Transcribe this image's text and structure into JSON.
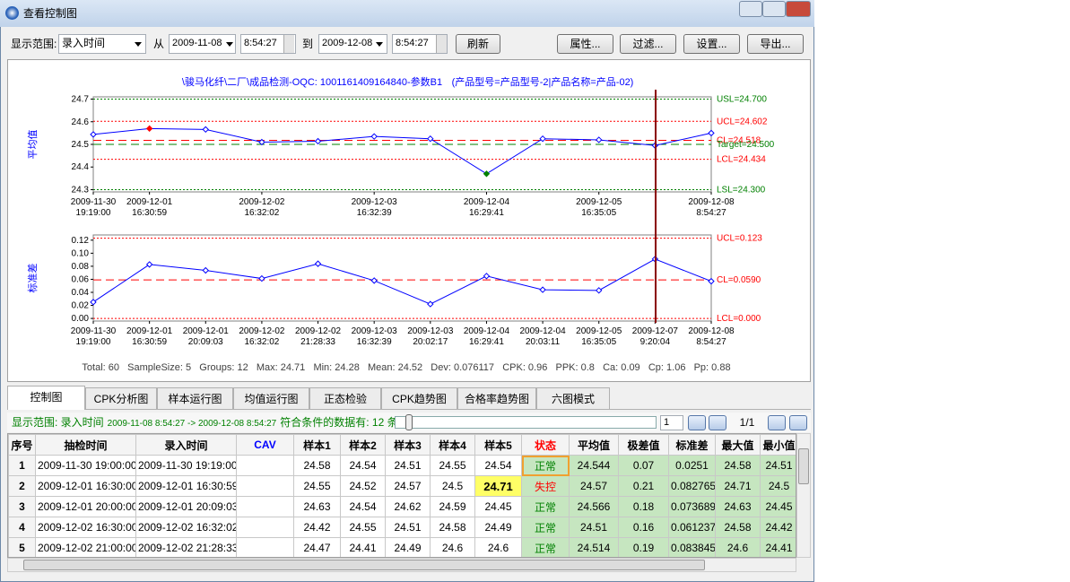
{
  "window": {
    "title": "查看控制图"
  },
  "toolbar": {
    "range_label": "显示范围:",
    "range_field": "录入时间",
    "from": "从",
    "from_date": "2009-11-08",
    "from_time": "8:54:27",
    "to": "到",
    "to_date": "2009-12-08",
    "to_time": "8:54:27",
    "refresh": "刷新",
    "buttons": [
      "属性...",
      "过滤...",
      "设置...",
      "导出..."
    ]
  },
  "chart_title": [
    "\\骏马化纤\\二厂\\成品检测-OQC: 1001161409164840-参数B1",
    "(产品型号=产品型号-2|产品名称=产品-02)"
  ],
  "charts": [
    {
      "type": "line",
      "y_label": "平均值",
      "color": "#0000ff",
      "categories": [
        "2009-11-30 19:19:00",
        "2009-12-01 16:30:59",
        null,
        "2009-12-02 16:32:02",
        null,
        "2009-12-03 16:32:39",
        null,
        "2009-12-04 16:29:41",
        null,
        "2009-12-05 16:35:05",
        null,
        "2009-12-08 8:54:27"
      ],
      "values": [
        24.544,
        24.57,
        24.566,
        24.51,
        24.514,
        24.535,
        24.525,
        24.37,
        24.525,
        24.52,
        24.495,
        24.55
      ],
      "marker_colors": [
        "#0000ff",
        "#ff0000",
        "#0000ff",
        "#0000ff",
        "#0000ff",
        "#0000ff",
        "#0000ff",
        "#008000",
        "#0000ff",
        "#0000ff",
        "#0000ff",
        "#0000ff"
      ],
      "ylim": [
        24.29,
        24.71
      ],
      "yticks": [
        24.3,
        24.4,
        24.5,
        24.6,
        24.7
      ],
      "control_lines": [
        {
          "label": "USL=24.700",
          "value": 24.7,
          "color": "#008000",
          "style": "dotted"
        },
        {
          "label": "UCL=24.602",
          "value": 24.602,
          "color": "#ff0000",
          "style": "dotted"
        },
        {
          "label": "CL=24.518",
          "value": 24.518,
          "color": "#ff0000",
          "style": "dashed"
        },
        {
          "label": "Target=24.500",
          "value": 24.5,
          "color": "#008000",
          "style": "dashed"
        },
        {
          "label": "LCL=24.434",
          "value": 24.434,
          "color": "#ff0000",
          "style": "dotted"
        },
        {
          "label": "LSL=24.300",
          "value": 24.3,
          "color": "#008000",
          "style": "dotted"
        }
      ]
    },
    {
      "type": "line",
      "y_label": "标准差",
      "color": "#0000ff",
      "categories": [
        "2009-11-30 19:19:00",
        "2009-12-01 16:30:59",
        "2009-12-01 20:09:03",
        "2009-12-02 16:32:02",
        "2009-12-02 21:28:33",
        "2009-12-03 16:32:39",
        "2009-12-03 20:02:17",
        "2009-12-04 16:29:41",
        "2009-12-04 20:03:11",
        "2009-12-05 16:35:05",
        "2009-12-07 9:20:04",
        "2009-12-08 8:54:27"
      ],
      "values": [
        0.0251,
        0.082765,
        0.073689,
        0.061237,
        0.083845,
        0.058,
        0.022,
        0.065,
        0.044,
        0.043,
        0.091,
        0.057
      ],
      "marker_colors": [
        "#0000ff",
        "#0000ff",
        "#0000ff",
        "#0000ff",
        "#0000ff",
        "#0000ff",
        "#0000ff",
        "#0000ff",
        "#0000ff",
        "#0000ff",
        "#0000ff",
        "#0000ff"
      ],
      "ylim": [
        -0.004,
        0.128
      ],
      "yticks": [
        {
          "value": 0,
          "label": "0.00"
        },
        0.02,
        0.04,
        0.06,
        0.08,
        {
          "value": 0.1,
          "label": "0.10"
        },
        0.12
      ],
      "control_lines": [
        {
          "label": "UCL=0.123",
          "value": 0.123,
          "color": "#ff0000",
          "style": "dotted"
        },
        {
          "label": "CL=0.0590",
          "value": 0.059,
          "color": "#ff0000",
          "style": "dashed"
        },
        {
          "label": "LCL=0.000",
          "value": 0,
          "color": "#ff0000",
          "style": "dotted"
        }
      ]
    }
  ],
  "stats": "Total: 60   SampleSize: 5   Groups: 12   Max: 24.71   Min: 24.28   Mean: 24.52   Dev: 0.076117   CPK: 0.96   PPK: 0.8   Ca: 0.09   Cp: 1.06   Pp: 0.88",
  "tabs": [
    "控制图",
    "CPK分析图",
    "样本运行图",
    "均值运行图",
    "正态检验",
    "CPK趋势图",
    "合格率趋势图",
    "六图模式"
  ],
  "status": {
    "range": "显示范围: 录入时间",
    "period": "2009-11-08 8:54:27 -> 2009-12-08 8:54:27",
    "count": "符合条件的数据有: 12 条",
    "page": "1",
    "pages": "1/1"
  },
  "table": {
    "columns": [
      "序号",
      "抽检时间",
      "录入时间",
      "CAV",
      "样本1",
      "样本2",
      "样本3",
      "样本4",
      "样本5",
      "状态",
      "平均值",
      "极差值",
      "标准差",
      "最大值",
      "最小值"
    ],
    "rows": [
      [
        "1",
        "2009-11-30 19:00:00",
        "2009-11-30 19:19:00",
        null,
        "24.58",
        "24.54",
        "24.51",
        "24.55",
        "24.54",
        "正常",
        "24.544",
        "0.07",
        "0.0251",
        "24.58",
        "24.51"
      ],
      [
        "2",
        "2009-12-01 16:30:00",
        "2009-12-01 16:30:59",
        null,
        "24.55",
        "24.52",
        "24.57",
        "24.5",
        "24.71",
        "失控",
        "24.57",
        "0.21",
        "0.082765",
        "24.71",
        "24.5"
      ],
      [
        "3",
        "2009-12-01 20:00:00",
        "2009-12-01 20:09:03",
        null,
        "24.63",
        "24.54",
        "24.62",
        "24.59",
        "24.45",
        "正常",
        "24.566",
        "0.18",
        "0.073689",
        "24.63",
        "24.45"
      ],
      [
        "4",
        "2009-12-02 16:30:00",
        "2009-12-02 16:32:02",
        null,
        "24.42",
        "24.55",
        "24.51",
        "24.58",
        "24.49",
        "正常",
        "24.51",
        "0.16",
        "0.061237",
        "24.58",
        "24.42"
      ],
      [
        "5",
        "2009-12-02 21:00:00",
        "2009-12-02 21:28:33",
        null,
        "24.47",
        "24.41",
        "24.49",
        "24.6",
        "24.6",
        "正常",
        "24.514",
        "0.19",
        "0.083845",
        "24.6",
        "24.41"
      ]
    ],
    "alarm_rows": [
      1
    ],
    "highlight_cell": [
      1,
      8
    ],
    "selected_cell": [
      0,
      9
    ]
  }
}
